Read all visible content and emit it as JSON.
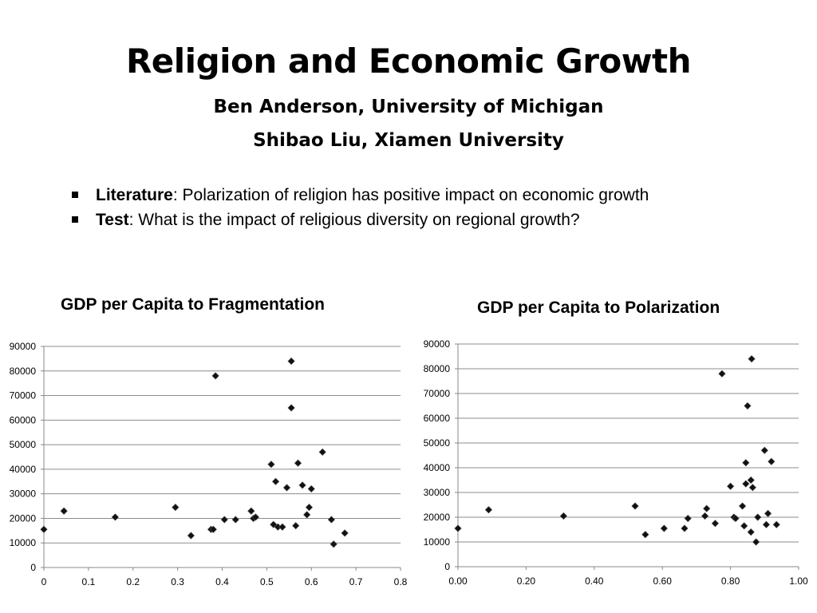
{
  "slide": {
    "title": "Religion and Economic Growth",
    "authors": [
      "Ben Anderson, University of Michigan",
      "Shibao Liu, Xiamen University"
    ],
    "bullets": [
      {
        "label": "Literature",
        "text": ": Polarization of religion has positive impact on economic growth"
      },
      {
        "label": "Test",
        "text": ": What is the impact of religious diversity on regional growth?"
      }
    ]
  },
  "chart_data": [
    {
      "type": "scatter",
      "title": "GDP per Capita to Fragmentation",
      "xlabel": "",
      "ylabel": "",
      "xlim": [
        0,
        0.8
      ],
      "ylim": [
        0,
        90000
      ],
      "xticks": [
        "0",
        "0.1",
        "0.2",
        "0.3",
        "0.4",
        "0.5",
        "0.6",
        "0.7",
        "0.8"
      ],
      "yticks": [
        "0",
        "10000",
        "20000",
        "30000",
        "40000",
        "50000",
        "60000",
        "70000",
        "80000",
        "90000"
      ],
      "grid": "horizontal",
      "legend": "none",
      "points": [
        [
          0.0,
          15500
        ],
        [
          0.045,
          23000
        ],
        [
          0.16,
          20500
        ],
        [
          0.295,
          24500
        ],
        [
          0.33,
          13000
        ],
        [
          0.375,
          15500
        ],
        [
          0.38,
          15500
        ],
        [
          0.385,
          78000
        ],
        [
          0.405,
          19500
        ],
        [
          0.43,
          19500
        ],
        [
          0.465,
          23000
        ],
        [
          0.47,
          20000
        ],
        [
          0.475,
          20500
        ],
        [
          0.51,
          42000
        ],
        [
          0.515,
          17500
        ],
        [
          0.52,
          35000
        ],
        [
          0.525,
          16500
        ],
        [
          0.535,
          16500
        ],
        [
          0.545,
          32500
        ],
        [
          0.555,
          84000
        ],
        [
          0.555,
          65000
        ],
        [
          0.565,
          17000
        ],
        [
          0.57,
          42500
        ],
        [
          0.58,
          33500
        ],
        [
          0.59,
          21500
        ],
        [
          0.595,
          24500
        ],
        [
          0.6,
          32000
        ],
        [
          0.625,
          47000
        ],
        [
          0.645,
          19500
        ],
        [
          0.65,
          9500
        ],
        [
          0.675,
          14000
        ]
      ]
    },
    {
      "type": "scatter",
      "title": "GDP per Capita to Polarization",
      "xlabel": "",
      "ylabel": "",
      "xlim": [
        0,
        1.0
      ],
      "ylim": [
        0,
        90000
      ],
      "xticks": [
        "0.00",
        "0.20",
        "0.40",
        "0.60",
        "0.80",
        "1.00"
      ],
      "yticks": [
        "0",
        "10000",
        "20000",
        "30000",
        "40000",
        "50000",
        "60000",
        "70000",
        "80000",
        "90000"
      ],
      "grid": "horizontal",
      "legend": "none",
      "points": [
        [
          0.0,
          15500
        ],
        [
          0.09,
          23000
        ],
        [
          0.31,
          20500
        ],
        [
          0.52,
          24500
        ],
        [
          0.55,
          13000
        ],
        [
          0.605,
          15500
        ],
        [
          0.665,
          15500
        ],
        [
          0.675,
          19500
        ],
        [
          0.725,
          20500
        ],
        [
          0.73,
          23500
        ],
        [
          0.755,
          17500
        ],
        [
          0.775,
          78000
        ],
        [
          0.8,
          32500
        ],
        [
          0.81,
          20000
        ],
        [
          0.815,
          19500
        ],
        [
          0.835,
          24500
        ],
        [
          0.84,
          16500
        ],
        [
          0.845,
          42000
        ],
        [
          0.845,
          33500
        ],
        [
          0.85,
          65000
        ],
        [
          0.86,
          14000
        ],
        [
          0.86,
          35000
        ],
        [
          0.862,
          84000
        ],
        [
          0.865,
          32000
        ],
        [
          0.875,
          10000
        ],
        [
          0.88,
          20000
        ],
        [
          0.9,
          47000
        ],
        [
          0.905,
          17000
        ],
        [
          0.91,
          21500
        ],
        [
          0.92,
          42500
        ],
        [
          0.935,
          17000
        ]
      ]
    }
  ]
}
